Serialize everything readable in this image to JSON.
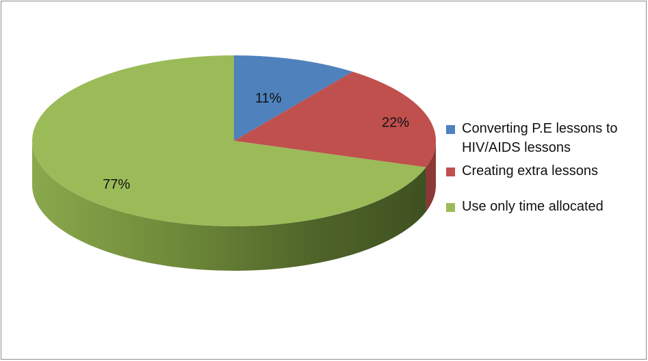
{
  "chart_data": {
    "type": "pie",
    "style": "3d",
    "title": "",
    "legend_position": "right",
    "slices": [
      {
        "label": "Converting P.E lessons to HIV/AIDS lessons",
        "value": 11,
        "display": "11%",
        "color": "#4f81bd",
        "side_color": "#385d8a"
      },
      {
        "label": "Creating extra lessons",
        "value": 22,
        "display": "22%",
        "color": "#c0504d",
        "side_color": "#8c3836"
      },
      {
        "label": "Use only time allocated",
        "value": 77,
        "display": "77%",
        "color": "#9bbb59",
        "side_color": "#718b3e"
      }
    ]
  }
}
